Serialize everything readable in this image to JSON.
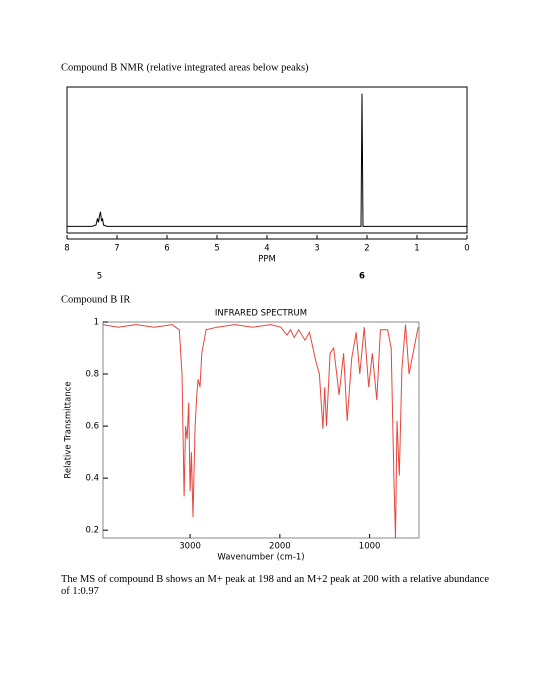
{
  "document": {
    "nmr_heading": "Compound B NMR  (relative integrated areas below peaks)",
    "ir_heading": "Compound B IR",
    "ms_text": "The MS of compound B shows an M+ peak at 198 and an M+2 peak at 200 with a relative abundance of 1:0.97"
  },
  "chart_data": [
    {
      "type": "line",
      "xlabel": "PPM",
      "x": [
        8,
        7.5,
        7.42,
        7.39,
        7.37,
        7.35,
        7.33,
        7.31,
        7.29,
        7.27,
        7.2,
        2.2,
        2.12,
        2.1,
        2.08,
        0
      ],
      "values": [
        0,
        0,
        0.01,
        0.06,
        0.03,
        0.08,
        0.11,
        0.04,
        0.06,
        0.01,
        0,
        0,
        0,
        1,
        0,
        0
      ],
      "color": "#000000",
      "xlim": [
        8,
        0
      ],
      "ylim": [
        -0.05,
        1.05
      ],
      "xticks": [
        8,
        7,
        6,
        5,
        4,
        3,
        2,
        1,
        0
      ],
      "annotations": [
        {
          "x": 7.35,
          "text": "5"
        },
        {
          "x": 2.1,
          "text": "6"
        }
      ]
    },
    {
      "type": "line",
      "title": "INFRARED SPECTRUM",
      "xlabel": "Wavenumber (cm-1)",
      "ylabel": "Relative Transmittance",
      "x": [
        3970,
        3800,
        3600,
        3400,
        3200,
        3120,
        3090,
        3067,
        3050,
        3033,
        3015,
        3000,
        2985,
        2967,
        2944,
        2925,
        2911,
        2890,
        2870,
        2822,
        2700,
        2500,
        2300,
        2100,
        1990,
        1920,
        1880,
        1840,
        1790,
        1720,
        1670,
        1600,
        1560,
        1520,
        1500,
        1480,
        1440,
        1400,
        1340,
        1290,
        1250,
        1200,
        1150,
        1110,
        1060,
        1010,
        970,
        920,
        880,
        800,
        760,
        730,
        712,
        695,
        670,
        640,
        600,
        560,
        460
      ],
      "values": [
        0.99,
        0.98,
        0.99,
        0.98,
        0.99,
        0.97,
        0.8,
        0.33,
        0.6,
        0.55,
        0.69,
        0.35,
        0.5,
        0.25,
        0.6,
        0.72,
        0.78,
        0.75,
        0.88,
        0.97,
        0.98,
        0.99,
        0.98,
        0.99,
        0.98,
        0.95,
        0.97,
        0.94,
        0.97,
        0.93,
        0.96,
        0.85,
        0.8,
        0.59,
        0.75,
        0.6,
        0.88,
        0.9,
        0.72,
        0.88,
        0.62,
        0.86,
        0.96,
        0.8,
        0.98,
        0.75,
        0.88,
        0.7,
        0.97,
        0.97,
        0.9,
        0.4,
        0.17,
        0.62,
        0.41,
        0.82,
        0.99,
        0.8,
        0.98
      ],
      "color": "#e8453c",
      "xlim": [
        3970,
        450
      ],
      "ylim": [
        0.17,
        1.0
      ],
      "xticks": [
        3000,
        2000,
        1000
      ],
      "yticks": [
        0.2,
        0.4,
        0.6,
        0.8,
        1
      ]
    }
  ]
}
